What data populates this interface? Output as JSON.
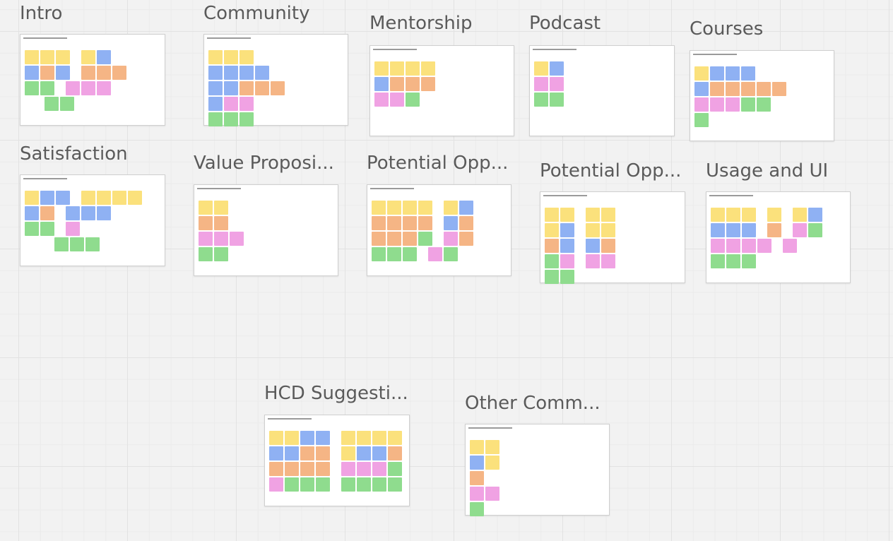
{
  "app": {
    "view": "whiteboard canvas"
  },
  "colors": {
    "y": "#fbe17c",
    "b": "#8fb1f3",
    "o": "#f5b585",
    "p": "#f0a2e3",
    "g": "#8fdc8e"
  },
  "frames": [
    {
      "title": "Intro",
      "notes": "yyy.yb bob.ooo gg.ppp ..gg"
    },
    {
      "title": "Community",
      "notes": "yyy bbbb bbooo bpp ggg"
    },
    {
      "title": "Mentorship",
      "notes": "yyyy booo ppg"
    },
    {
      "title": "Podcast",
      "notes": "yb pp gg"
    },
    {
      "title": "Courses",
      "notes": "ybbb booooo pppgg g"
    },
    {
      "title": "Satisfaction",
      "notes": "ybb.yyyy bo.bbb gg.p ...ggg"
    },
    {
      "title": "Value Proposi...",
      "notes": "yy oo ppp gg"
    },
    {
      "title": "Potential Opp...",
      "notes": "yyyy.yb oooo.bo ooog.po ggg.pg"
    },
    {
      "title": "Potential Opp...",
      "notes": "yy.yy yb.yy ob.bo gp.pp gg"
    },
    {
      "title": "Usage and UI",
      "notes": "yyy.y.yb bbb.o.pg pppp.p ggg"
    },
    {
      "title": "HCD Suggesti...",
      "notes": "yybb.yyyy bboo.ybbo oooo.pppg pggg.gggg"
    },
    {
      "title": "Other Comm...",
      "notes": "yy by o pp g"
    }
  ]
}
